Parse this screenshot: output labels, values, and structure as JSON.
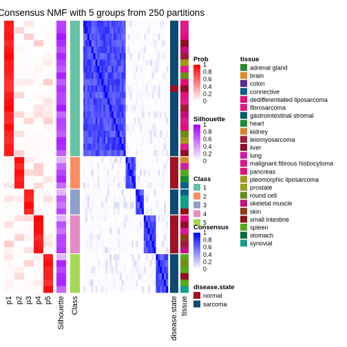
{
  "chart_data": {
    "type": "heatmap",
    "title": "Consensus NMF with 5 groups from 250 partitions",
    "row_groups": [
      {
        "class": "1",
        "count": 21
      },
      {
        "class": "2",
        "count": 5
      },
      {
        "class": "3",
        "count": 4
      },
      {
        "class": "4",
        "count": 6
      },
      {
        "class": "5",
        "count": 6
      }
    ],
    "prob_columns": [
      "p1",
      "p2",
      "p3",
      "p4",
      "p5"
    ],
    "annotation_columns": [
      "Silhouette",
      "Class"
    ],
    "side_annotations": [
      "disease.state",
      "tissue"
    ],
    "legends": {
      "prob": {
        "title": "Prob",
        "ticks": [
          "1",
          "0.8",
          "0.6",
          "0.4",
          "0.2",
          "0"
        ],
        "low": "#ffffff",
        "high": "#ff0000"
      },
      "silhouette": {
        "title": "Silhouette",
        "ticks": [
          "1",
          "0.8",
          "0.6",
          "0.4",
          "0.2",
          "0"
        ],
        "low": "#ffffff",
        "high": "#9e00ff"
      },
      "class": {
        "title": "Class",
        "items": [
          {
            "label": "1",
            "color": "#66c2a5"
          },
          {
            "label": "2",
            "color": "#fc8d62"
          },
          {
            "label": "3",
            "color": "#8da0cb"
          },
          {
            "label": "4",
            "color": "#e78ac3"
          },
          {
            "label": "5",
            "color": "#a6d854"
          }
        ]
      },
      "consensus": {
        "title": "Consensus",
        "ticks": [
          "1",
          "0.8",
          "0.6",
          "0.4",
          "0.2",
          "0"
        ],
        "low": "#ffffff",
        "high": "#0000ff"
      },
      "disease_state": {
        "title": "disease.state",
        "items": [
          {
            "label": "normal",
            "color": "#9e1425"
          },
          {
            "label": "sarcoma",
            "color": "#0d4a74"
          }
        ]
      },
      "tissue": {
        "title": "tissue",
        "items": [
          {
            "label": "adrenal gland",
            "color": "#2e8b30"
          },
          {
            "label": "brain",
            "color": "#d98e21"
          },
          {
            "label": "colon",
            "color": "#5a2a8c"
          },
          {
            "label": "connective",
            "color": "#0d5f88"
          },
          {
            "label": "dedifferentiated liposarcoma",
            "color": "#e00f7a"
          },
          {
            "label": "fibrosarcoma",
            "color": "#de1d88"
          },
          {
            "label": "gastrointestinal stromal",
            "color": "#005f66"
          },
          {
            "label": "heart",
            "color": "#198d35"
          },
          {
            "label": "kidney",
            "color": "#d8862b"
          },
          {
            "label": "leiomyosarcoma",
            "color": "#9c1c3a"
          },
          {
            "label": "liver",
            "color": "#8e0f26"
          },
          {
            "label": "lung",
            "color": "#cf1fa6"
          },
          {
            "label": "malignant fibrous histiocytoma",
            "color": "#d81b8f"
          },
          {
            "label": "pancreas",
            "color": "#e2117e"
          },
          {
            "label": "pleomorphic liposarcoma",
            "color": "#a09a1a"
          },
          {
            "label": "prostate",
            "color": "#9aa21e"
          },
          {
            "label": "round cell",
            "color": "#6c8c1e"
          },
          {
            "label": "skeletal muscle",
            "color": "#c11280"
          },
          {
            "label": "skin",
            "color": "#8e3c1a"
          },
          {
            "label": "small intestine",
            "color": "#8e1414"
          },
          {
            "label": "spleen",
            "color": "#5aa61f"
          },
          {
            "label": "stomach",
            "color": "#0a6b3a"
          },
          {
            "label": "synovial",
            "color": "#12a08a"
          }
        ]
      }
    }
  }
}
